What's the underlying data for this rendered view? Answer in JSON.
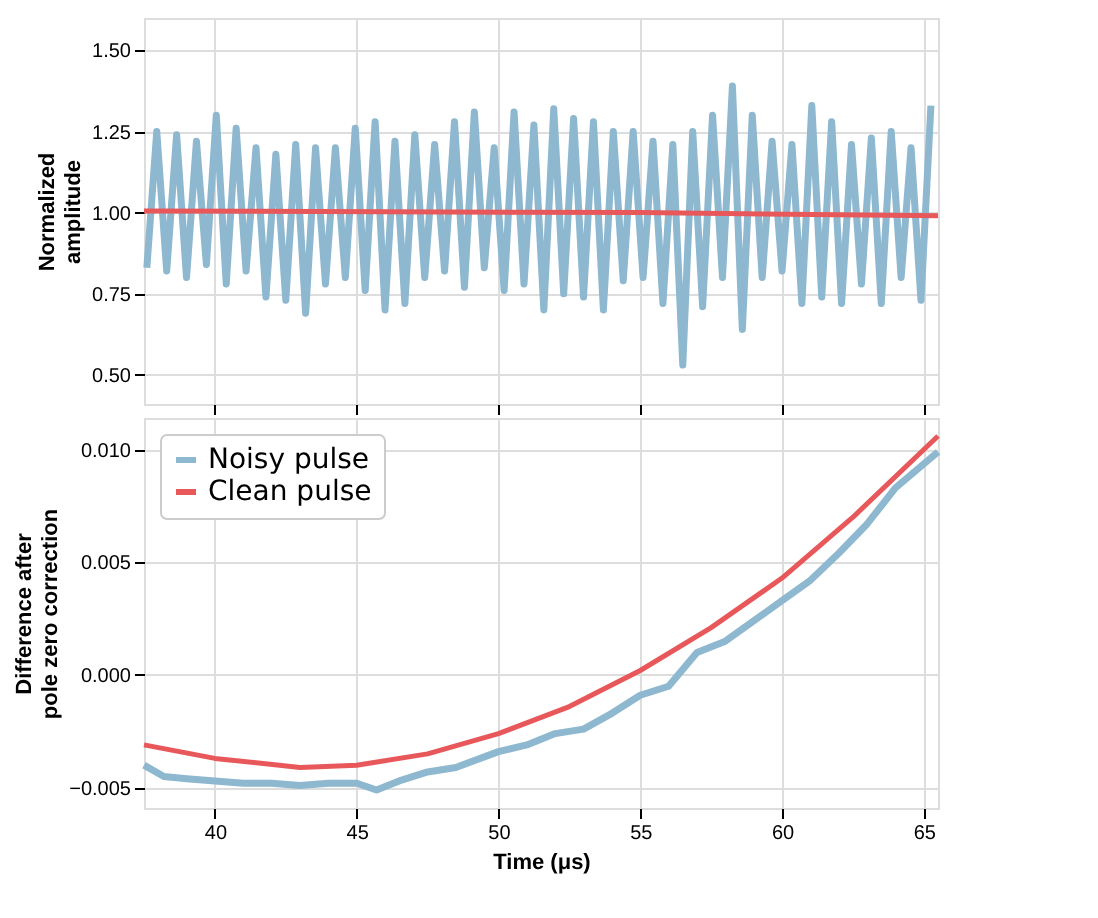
{
  "chart_data": [
    {
      "type": "line",
      "ylabel": "Normalized\namplitude",
      "xlim": [
        37.5,
        65.5
      ],
      "xticks": [
        40,
        45,
        50,
        55,
        60,
        65
      ],
      "ylim": [
        0.41,
        1.6
      ],
      "yticks": [
        {
          "value": 0.5,
          "label": "0.50"
        },
        {
          "value": 0.75,
          "label": "0.75"
        },
        {
          "value": 1.0,
          "label": "1.00"
        },
        {
          "value": 1.25,
          "label": "1.25"
        },
        {
          "value": 1.5,
          "label": "1.50"
        }
      ],
      "tick_labels": "y",
      "grid": true,
      "line_style": "solid",
      "series": [
        {
          "color": "#8db8cf",
          "x": [
            37.6,
            37.95,
            38.3,
            38.65,
            39.0,
            39.35,
            39.7,
            40.05,
            40.4,
            40.75,
            41.1,
            41.45,
            41.8,
            42.15,
            42.5,
            42.85,
            43.2,
            43.55,
            43.9,
            44.25,
            44.6,
            44.95,
            45.3,
            45.65,
            46.0,
            46.35,
            46.7,
            47.05,
            47.4,
            47.75,
            48.1,
            48.45,
            48.8,
            49.15,
            49.5,
            49.85,
            50.2,
            50.55,
            50.9,
            51.25,
            51.6,
            51.95,
            52.3,
            52.65,
            53.0,
            53.35,
            53.7,
            54.05,
            54.4,
            54.75,
            55.1,
            55.45,
            55.8,
            56.15,
            56.5,
            56.85,
            57.2,
            57.55,
            57.9,
            58.25,
            58.6,
            58.95,
            59.3,
            59.65,
            60.0,
            60.35,
            60.7,
            61.05,
            61.4,
            61.75,
            62.1,
            62.45,
            62.8,
            63.15,
            63.5,
            63.85,
            64.2,
            64.55,
            64.9,
            65.25
          ],
          "values": [
            0.83,
            1.25,
            0.82,
            1.24,
            0.8,
            1.22,
            0.84,
            1.3,
            0.78,
            1.26,
            0.82,
            1.2,
            0.74,
            1.18,
            0.73,
            1.21,
            0.69,
            1.2,
            0.78,
            1.2,
            0.8,
            1.26,
            0.76,
            1.28,
            0.7,
            1.22,
            0.72,
            1.24,
            0.8,
            1.21,
            0.82,
            1.28,
            0.77,
            1.31,
            0.83,
            1.2,
            0.76,
            1.31,
            0.78,
            1.27,
            0.7,
            1.32,
            0.75,
            1.29,
            0.74,
            1.28,
            0.7,
            1.25,
            0.79,
            1.25,
            0.8,
            1.22,
            0.72,
            1.21,
            0.53,
            1.25,
            0.71,
            1.3,
            0.8,
            1.39,
            0.64,
            1.3,
            0.8,
            1.22,
            0.82,
            1.21,
            0.72,
            1.33,
            0.74,
            1.28,
            0.72,
            1.21,
            0.78,
            1.23,
            0.72,
            1.25,
            0.8,
            1.2,
            0.73,
            1.33
          ]
        },
        {
          "color": "#e8585a",
          "x": [
            37.5,
            55,
            65.5
          ],
          "values": [
            1.005,
            1.0,
            0.99
          ]
        }
      ]
    },
    {
      "type": "line",
      "xlabel": "Time (μs)",
      "ylabel": "Difference after\npole zero correction",
      "xlim": [
        37.5,
        65.5
      ],
      "xticks": [
        40,
        45,
        50,
        55,
        60,
        65
      ],
      "ylim": [
        -0.0059,
        0.0114
      ],
      "yticks": [
        {
          "value": -0.005,
          "label": "−0.005"
        },
        {
          "value": 0,
          "label": "0.000"
        },
        {
          "value": 0.005,
          "label": "0.005"
        },
        {
          "value": 0.01,
          "label": "0.010"
        }
      ],
      "grid": true,
      "legend": "top left",
      "line_style": "solid",
      "series": [
        {
          "name": "Noisy pulse",
          "color": "#8db8cf",
          "x": [
            37.5,
            38.2,
            39,
            40,
            41,
            42,
            43,
            44,
            45,
            45.7,
            46.5,
            47.5,
            48.5,
            50,
            51,
            52,
            53,
            54,
            54.5,
            55,
            56,
            57,
            58,
            59,
            60,
            61,
            62,
            63,
            64,
            65.5
          ],
          "values": [
            -0.004,
            -0.0045,
            -0.0046,
            -0.0047,
            -0.0048,
            -0.0048,
            -0.0049,
            -0.0048,
            -0.0048,
            -0.0051,
            -0.0047,
            -0.0043,
            -0.0041,
            -0.0034,
            -0.0031,
            -0.0026,
            -0.0024,
            -0.0017,
            -0.0013,
            -0.0009,
            -0.0005,
            0.001,
            0.0015,
            0.0024,
            0.0033,
            0.0042,
            0.0054,
            0.0067,
            0.0083,
            0.0099
          ]
        },
        {
          "name": "Clean pulse",
          "color": "#e8585a",
          "x": [
            37.5,
            40,
            43,
            45,
            47.5,
            50,
            52.5,
            55,
            57.5,
            60,
            62.5,
            65.5
          ],
          "values": [
            -0.0031,
            -0.0037,
            -0.0041,
            -0.004,
            -0.0035,
            -0.0026,
            -0.0014,
            0.0002,
            0.0021,
            0.0043,
            0.007,
            0.0106
          ]
        }
      ]
    }
  ]
}
